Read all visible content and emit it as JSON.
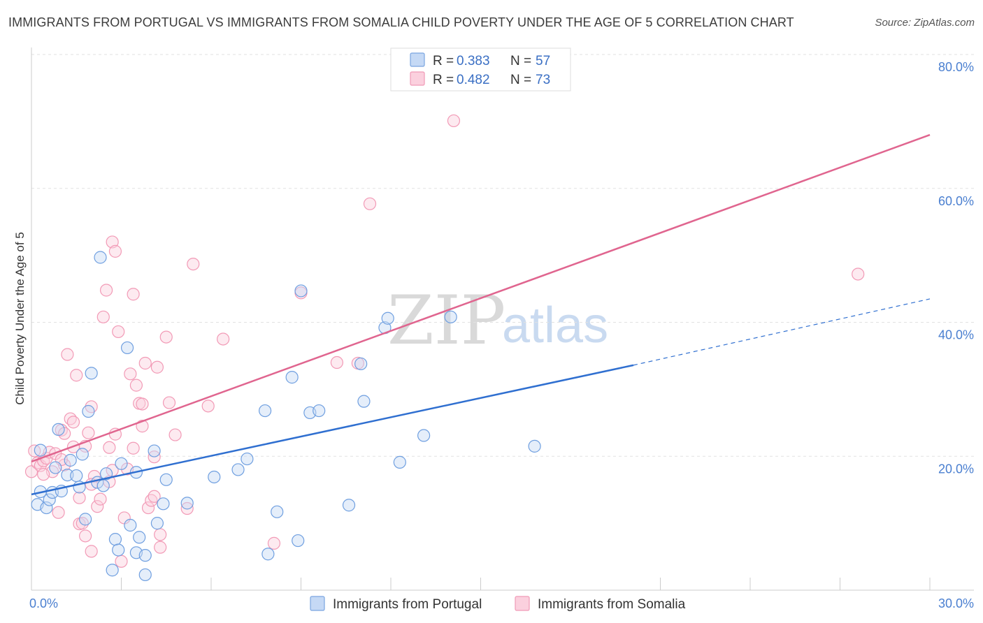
{
  "title": "IMMIGRANTS FROM PORTUGAL VS IMMIGRANTS FROM SOMALIA CHILD POVERTY UNDER THE AGE OF 5 CORRELATION CHART",
  "source": "Source: ZipAtlas.com",
  "watermark": {
    "zip": "ZIP",
    "atlas": "atlas"
  },
  "legend": {
    "portugal": {
      "r_label": "R = ",
      "r_value": "0.383",
      "n_label": "N = ",
      "n_value": "57"
    },
    "somalia": {
      "r_label": "R = ",
      "r_value": "0.482",
      "n_label": "N = ",
      "n_value": "73"
    }
  },
  "chart_data": {
    "type": "scatter",
    "title": "IMMIGRANTS FROM PORTUGAL VS IMMIGRANTS FROM SOMALIA CHILD POVERTY UNDER THE AGE OF 5 CORRELATION CHART",
    "xlabel": "",
    "ylabel": "Child Poverty Under the Age of 5",
    "xlim": [
      0,
      30
    ],
    "ylim": [
      0,
      82
    ],
    "x_tick_labels": [
      {
        "value": 0,
        "label": "0.0%"
      },
      {
        "value": 30,
        "label": "30.0%"
      }
    ],
    "y_tick_labels": [
      {
        "value": 20,
        "label": "20.0%"
      },
      {
        "value": 40,
        "label": "40.0%"
      },
      {
        "value": 60,
        "label": "60.0%"
      },
      {
        "value": 80,
        "label": "80.0%"
      }
    ],
    "x_minor_ticks": [
      3,
      6,
      9,
      12,
      15,
      21,
      24,
      27
    ],
    "grid_y": [
      20,
      40,
      60,
      80
    ],
    "legend_position": "top-center",
    "colors": {
      "portugal": "#6f9fe0",
      "portugal_line": "#2f6fd0",
      "somalia": "#f29ab6",
      "somalia_line": "#e0658f"
    },
    "series": [
      {
        "name": "Immigrants from Portugal",
        "R": 0.383,
        "N": 57,
        "trend": {
          "x0": 0,
          "y0": 14.3,
          "x1": 20.1,
          "y1": 33.6,
          "dashed_to_x": 30,
          "dashed_to_y": 43.5
        },
        "points": [
          [
            0.2,
            12.8
          ],
          [
            0.3,
            14.7
          ],
          [
            0.5,
            12.3
          ],
          [
            0.6,
            13.5
          ],
          [
            0.7,
            14.6
          ],
          [
            0.8,
            18.3
          ],
          [
            0.9,
            24.0
          ],
          [
            1.0,
            14.8
          ],
          [
            1.2,
            17.2
          ],
          [
            1.3,
            19.4
          ],
          [
            1.5,
            17.1
          ],
          [
            1.6,
            15.4
          ],
          [
            1.7,
            20.3
          ],
          [
            1.8,
            10.6
          ],
          [
            1.9,
            26.7
          ],
          [
            2.0,
            32.4
          ],
          [
            2.2,
            16.1
          ],
          [
            2.3,
            49.7
          ],
          [
            2.4,
            15.6
          ],
          [
            2.5,
            17.4
          ],
          [
            2.7,
            3.0
          ],
          [
            2.8,
            7.6
          ],
          [
            2.9,
            6.0
          ],
          [
            3.0,
            18.9
          ],
          [
            3.2,
            36.2
          ],
          [
            3.3,
            9.7
          ],
          [
            3.5,
            17.6
          ],
          [
            3.5,
            5.6
          ],
          [
            3.6,
            7.9
          ],
          [
            3.8,
            5.2
          ],
          [
            3.8,
            2.3
          ],
          [
            4.1,
            20.8
          ],
          [
            4.2,
            10.0
          ],
          [
            4.4,
            12.9
          ],
          [
            4.5,
            16.5
          ],
          [
            5.2,
            13.0
          ],
          [
            6.1,
            16.9
          ],
          [
            6.9,
            18.0
          ],
          [
            7.2,
            19.6
          ],
          [
            7.8,
            26.8
          ],
          [
            7.9,
            5.4
          ],
          [
            8.2,
            11.7
          ],
          [
            8.7,
            31.8
          ],
          [
            8.9,
            7.4
          ],
          [
            9.3,
            26.5
          ],
          [
            9.6,
            26.8
          ],
          [
            10.6,
            12.7
          ],
          [
            11.0,
            33.8
          ],
          [
            11.1,
            28.2
          ],
          [
            11.8,
            39.2
          ],
          [
            11.9,
            40.6
          ],
          [
            12.3,
            19.1
          ],
          [
            13.1,
            23.1
          ],
          [
            14.0,
            40.8
          ],
          [
            16.8,
            21.5
          ],
          [
            9.0,
            44.7
          ],
          [
            0.3,
            20.9
          ]
        ]
      },
      {
        "name": "Immigrants from Somalia",
        "R": 0.482,
        "N": 73,
        "trend": {
          "x0": 0,
          "y0": 19.2,
          "x1": 30,
          "y1": 68.0
        },
        "points": [
          [
            0.0,
            17.7
          ],
          [
            0.1,
            20.8
          ],
          [
            0.2,
            19.0
          ],
          [
            0.3,
            18.6
          ],
          [
            0.4,
            19.3
          ],
          [
            0.5,
            19.7
          ],
          [
            0.6,
            20.6
          ],
          [
            0.7,
            17.7
          ],
          [
            0.8,
            20.4
          ],
          [
            0.9,
            11.6
          ],
          [
            1.0,
            23.9
          ],
          [
            1.1,
            23.4
          ],
          [
            1.1,
            18.7
          ],
          [
            1.2,
            35.2
          ],
          [
            1.3,
            25.6
          ],
          [
            1.4,
            21.4
          ],
          [
            1.4,
            25.1
          ],
          [
            1.5,
            32.1
          ],
          [
            1.6,
            13.8
          ],
          [
            1.6,
            9.9
          ],
          [
            1.7,
            10.0
          ],
          [
            1.8,
            21.5
          ],
          [
            1.8,
            8.1
          ],
          [
            1.9,
            23.5
          ],
          [
            2.0,
            5.8
          ],
          [
            2.0,
            27.4
          ],
          [
            2.1,
            17.0
          ],
          [
            2.2,
            12.5
          ],
          [
            2.3,
            13.6
          ],
          [
            2.4,
            40.8
          ],
          [
            2.5,
            44.8
          ],
          [
            2.6,
            16.2
          ],
          [
            2.6,
            21.3
          ],
          [
            2.7,
            17.9
          ],
          [
            2.7,
            52.0
          ],
          [
            2.8,
            23.3
          ],
          [
            2.8,
            50.6
          ],
          [
            2.9,
            38.6
          ],
          [
            3.0,
            4.3
          ],
          [
            3.1,
            10.8
          ],
          [
            3.2,
            18.1
          ],
          [
            3.3,
            32.3
          ],
          [
            3.4,
            21.2
          ],
          [
            3.4,
            44.2
          ],
          [
            3.5,
            30.6
          ],
          [
            3.6,
            27.9
          ],
          [
            3.7,
            24.5
          ],
          [
            3.7,
            27.8
          ],
          [
            3.8,
            33.9
          ],
          [
            3.9,
            12.3
          ],
          [
            4.0,
            13.4
          ],
          [
            4.1,
            19.9
          ],
          [
            4.2,
            33.3
          ],
          [
            4.3,
            8.3
          ],
          [
            4.3,
            6.4
          ],
          [
            4.5,
            37.8
          ],
          [
            4.6,
            28.0
          ],
          [
            4.8,
            23.2
          ],
          [
            5.2,
            12.2
          ],
          [
            5.4,
            48.7
          ],
          [
            5.9,
            27.5
          ],
          [
            6.4,
            37.5
          ],
          [
            8.1,
            7.0
          ],
          [
            9.0,
            44.4
          ],
          [
            10.2,
            34.0
          ],
          [
            10.9,
            33.9
          ],
          [
            11.3,
            57.7
          ],
          [
            14.1,
            70.1
          ],
          [
            27.6,
            47.2
          ],
          [
            0.4,
            17.3
          ],
          [
            1.0,
            19.5
          ],
          [
            2.0,
            15.8
          ],
          [
            4.1,
            14.0
          ]
        ]
      }
    ]
  }
}
